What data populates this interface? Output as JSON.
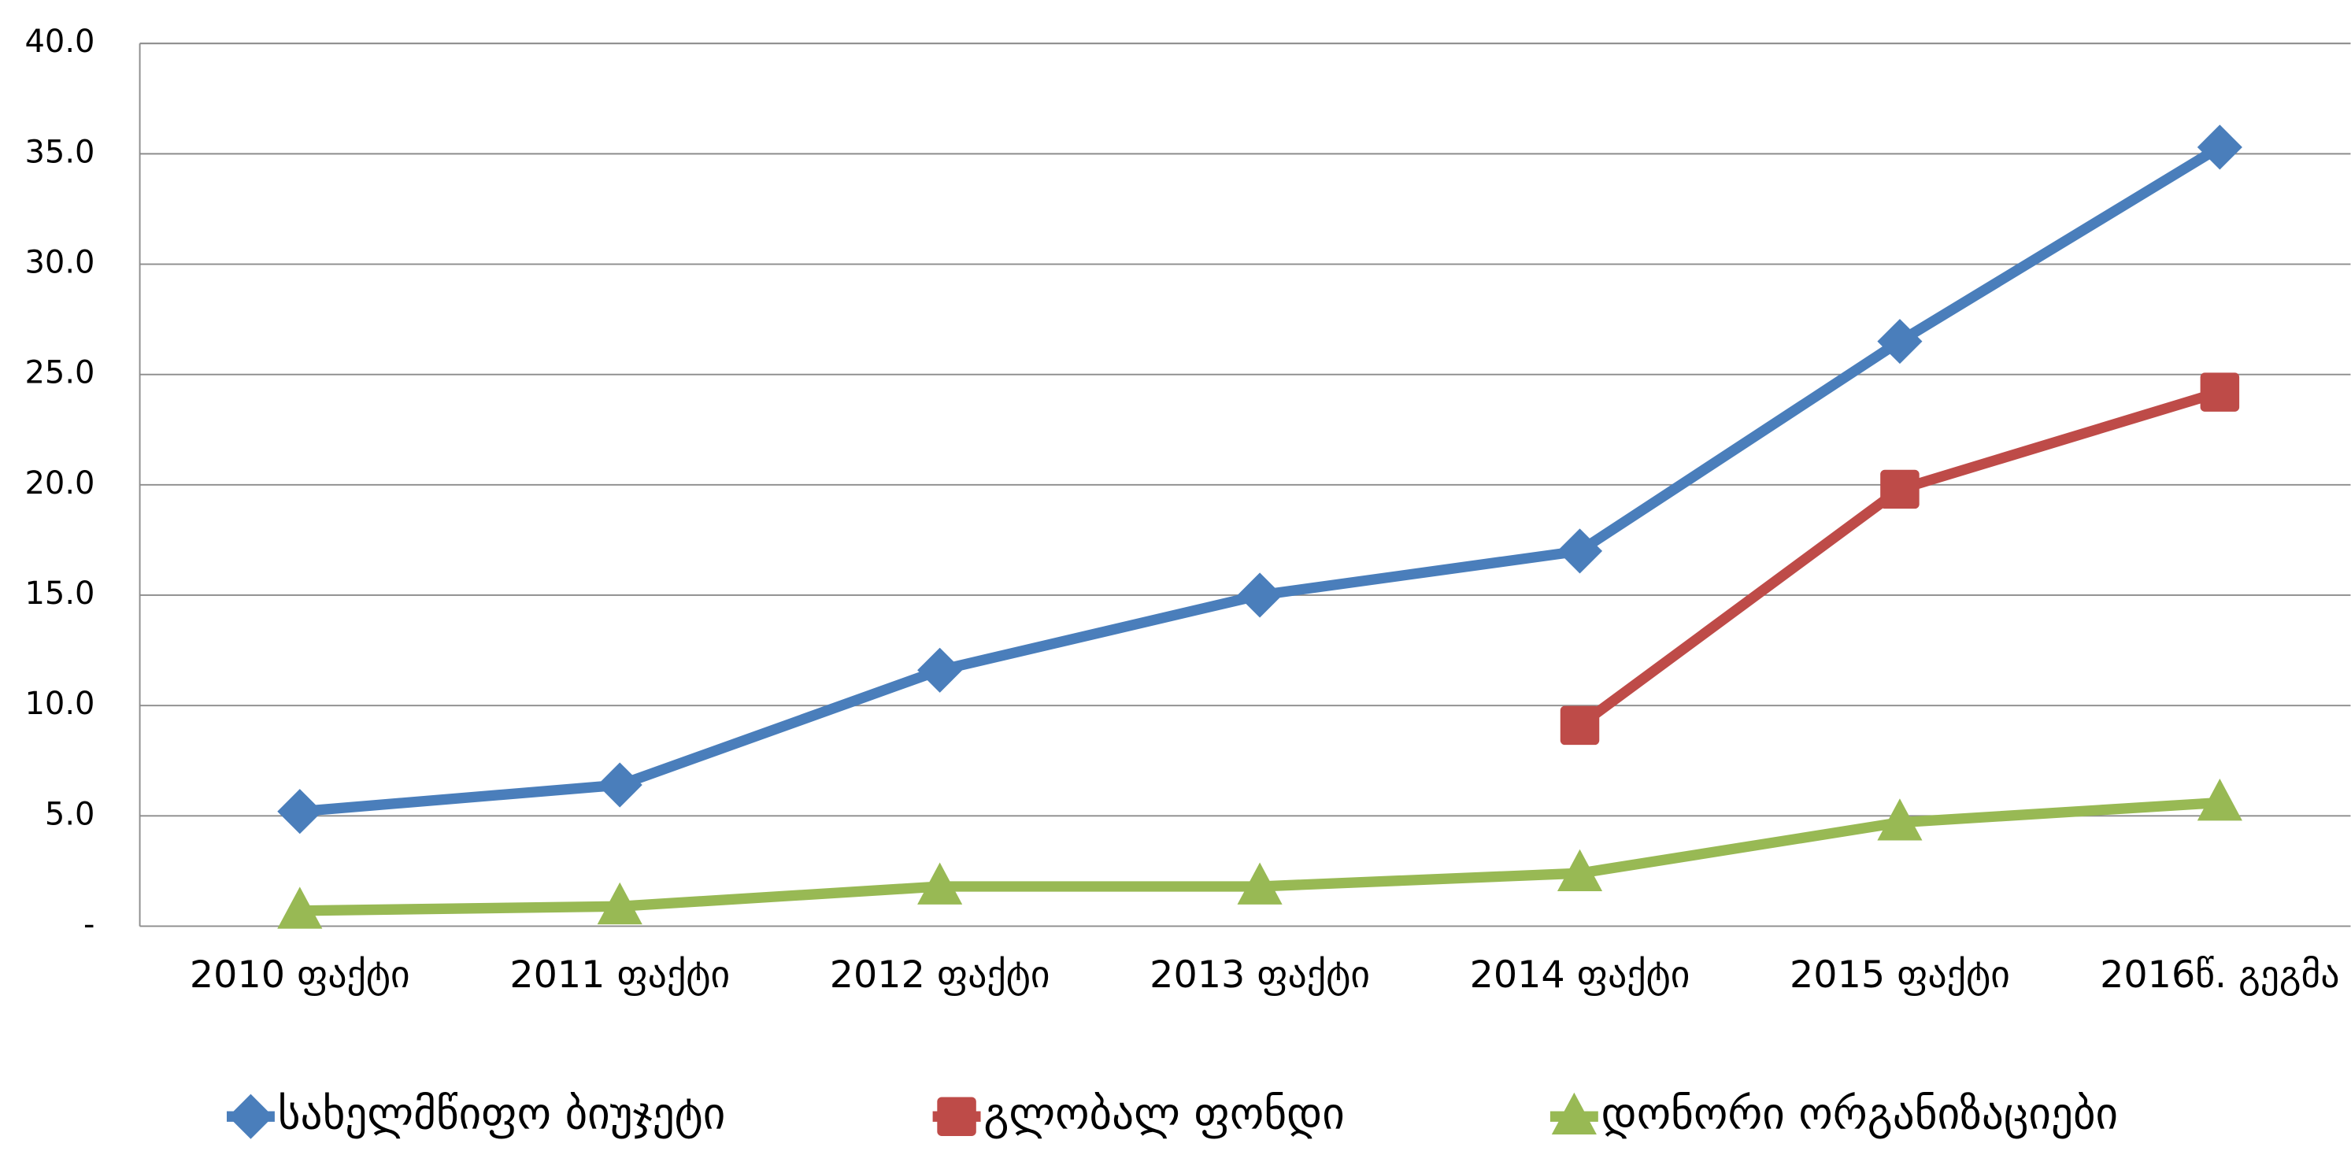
{
  "chart_data": {
    "type": "line",
    "categories": [
      "2010 ფაქტი",
      "2011 ფაქტი",
      "2012 ფაქტი",
      "2013 ფაქტი",
      "2014 ფაქტი",
      "2015 ფაქტი",
      "2016წ. გეგმა"
    ],
    "series": [
      {
        "name": "სახელმწიფო ბიუჯეტი",
        "color": "#4a7ebb",
        "marker": "diamond",
        "values": [
          5.2,
          6.4,
          11.6,
          15.0,
          17.0,
          26.5,
          35.3
        ]
      },
      {
        "name": "გლობალ ფონდი",
        "color": "#be4b48",
        "marker": "square",
        "values": [
          null,
          null,
          null,
          null,
          9.1,
          19.8,
          24.2
        ]
      },
      {
        "name": "დონორი ორგანიზაციები",
        "color": "#98b954",
        "marker": "triangle",
        "values": [
          0.7,
          0.9,
          1.8,
          1.8,
          2.4,
          4.7,
          5.6
        ]
      }
    ],
    "ylim": [
      0,
      40
    ],
    "yticks": [
      {
        "value": 0,
        "label": "-"
      },
      {
        "value": 5,
        "label": "5.0"
      },
      {
        "value": 10,
        "label": "10.0"
      },
      {
        "value": 15,
        "label": "15.0"
      },
      {
        "value": 20,
        "label": "20.0"
      },
      {
        "value": 25,
        "label": "25.0"
      },
      {
        "value": 30,
        "label": "30.0"
      },
      {
        "value": 35,
        "label": "35.0"
      },
      {
        "value": 40,
        "label": "40.0"
      }
    ],
    "grid": true,
    "legend": "bottom"
  }
}
